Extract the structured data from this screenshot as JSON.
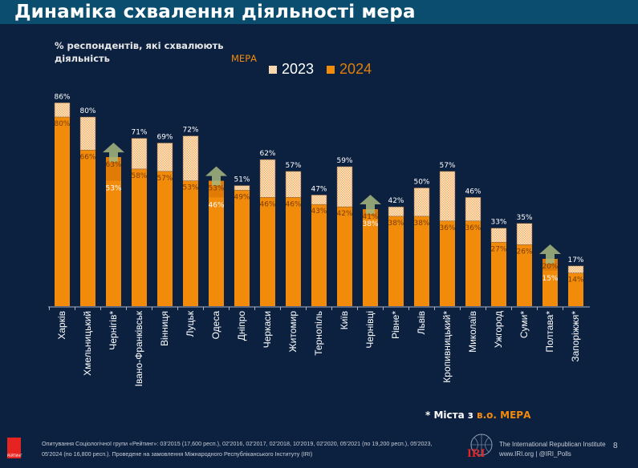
{
  "header": {
    "title": "Динаміка схвалення діяльності мера"
  },
  "chart_data": {
    "type": "bar",
    "subtitle_main": "% респондентів, які схвалюють діяльність",
    "subtitle_accent": "МЕРА",
    "categories": [
      "Харків",
      "Хмельницький",
      "Чернігів*",
      "Івано-Франківськ",
      "Вінниця",
      "Луцьк",
      "Одеса",
      "Дніпро",
      "Черкаси",
      "Житомир",
      "Тернопіль",
      "Київ",
      "Чернівці",
      "Рівне*",
      "Львів",
      "Кропивницький*",
      "Миколаїв",
      "Ужгород",
      "Суми*",
      "Полтава*",
      "Запоріжжя*"
    ],
    "series": [
      {
        "name": "2023",
        "values": [
          86,
          80,
          53,
          71,
          69,
          72,
          46,
          51,
          62,
          57,
          47,
          59,
          38,
          42,
          50,
          57,
          46,
          33,
          35,
          15,
          17
        ]
      },
      {
        "name": "2024",
        "values": [
          80,
          66,
          63,
          58,
          57,
          53,
          53,
          49,
          46,
          46,
          43,
          42,
          41,
          38,
          38,
          36,
          36,
          27,
          26,
          20,
          14
        ]
      }
    ],
    "unit": "%",
    "ylim": [
      0,
      100
    ],
    "increase_marker": "up-arrow-icon",
    "legend_placement": "top",
    "colors": {
      "2023": "#f6c58c",
      "2024": "#f28a0a",
      "arrow": "#a8b87f",
      "label_inside": "#7a3d00"
    }
  },
  "note": {
    "prefix": "* Міста з",
    "accent": "в.о. МЕРА"
  },
  "footer": {
    "logo_text": "РЕЙТИНГ",
    "source": "Опитування Соціологічної групи «Рейтинг»: 03'2015 (17,600 респ.), 02'2016, 02'2017, 02'2018, 10'2019, 02'2020, 05'2021 (по 19,200 респ.), 05'2023, 05'2024 (по 16,800 респ.). Проведене на замовлення Міжнародного Республіканського Інституту (IRI)",
    "iri_logo": "IRI",
    "iri_name": "The International Republican Institute",
    "iri_links": "www.IRI.org | @IRI_Polls",
    "page": "8"
  }
}
